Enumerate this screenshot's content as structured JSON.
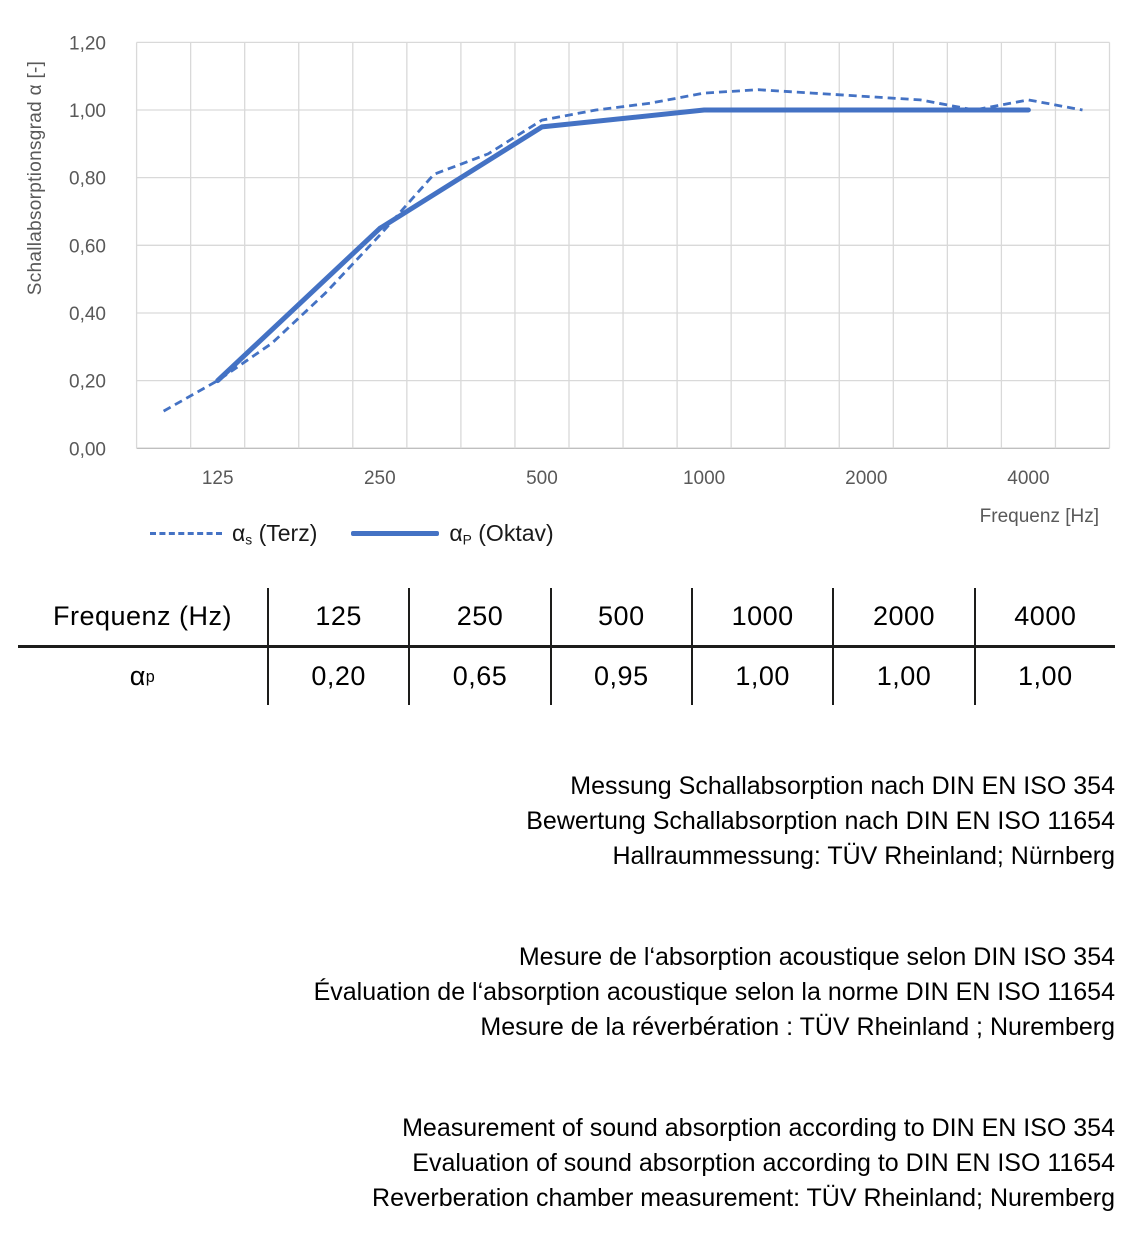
{
  "chart": {
    "y_axis_title": "Schallabsorptionsgrad α [-]",
    "x_axis_title": "Frequenz [Hz]",
    "y_ticks": [
      "0,00",
      "0,20",
      "0,40",
      "0,60",
      "0,80",
      "1,00",
      "1,20"
    ],
    "x_ticks": [
      "125",
      "250",
      "500",
      "1000",
      "2000",
      "4000"
    ],
    "legend": [
      {
        "base": "α",
        "sub": "s",
        "rest": " (Terz)",
        "style": "dashed"
      },
      {
        "base": "α",
        "sub": "P",
        "rest": " (Oktav)",
        "style": "solid"
      }
    ],
    "colors": {
      "line": "#4472C4",
      "grid": "#D9D9D9",
      "axis_line": "#BFBFBF",
      "axis_text": "#595959"
    }
  },
  "chart_data": {
    "type": "line",
    "title": "",
    "xlabel": "Frequenz [Hz]",
    "ylabel": "Schallabsorptionsgrad α [-]",
    "ylim": [
      0,
      1.2
    ],
    "y_tick_step": 0.2,
    "grid": true,
    "legend_position": "bottom-left",
    "x_scale": "third-octave categories (log spacing)",
    "categories": [
      100,
      125,
      160,
      200,
      250,
      315,
      400,
      500,
      630,
      800,
      1000,
      1250,
      1600,
      2000,
      2500,
      3150,
      4000,
      5000
    ],
    "x_axis_labeled_at": [
      125,
      250,
      500,
      1000,
      2000,
      4000
    ],
    "series": [
      {
        "name": "αs (Terz)",
        "style": "dashed",
        "x": [
          100,
          125,
          160,
          200,
          250,
          315,
          400,
          500,
          630,
          800,
          1000,
          1250,
          1600,
          2000,
          2500,
          3150,
          4000,
          5000
        ],
        "values": [
          0.11,
          0.2,
          0.31,
          0.46,
          0.63,
          0.81,
          0.87,
          0.97,
          1.0,
          1.02,
          1.05,
          1.06,
          1.05,
          1.04,
          1.03,
          1.0,
          1.03,
          1.0
        ]
      },
      {
        "name": "αp (Oktav)",
        "style": "solid",
        "x": [
          125,
          250,
          500,
          1000,
          2000,
          4000
        ],
        "values": [
          0.2,
          0.65,
          0.95,
          1.0,
          1.0,
          1.0
        ]
      }
    ]
  },
  "table": {
    "header_label": "Frequenz (Hz)",
    "header": [
      "125",
      "250",
      "500",
      "1000",
      "2000",
      "4000"
    ],
    "row_label_base": "α",
    "row_label_sub": "p",
    "values": [
      "0,20",
      "0,65",
      "0,95",
      "1,00",
      "1,00",
      "1,00"
    ]
  },
  "notes": {
    "german": {
      "line1": "Messung Schallabsorption nach DIN EN ISO 354",
      "line2": "Bewertung Schallabsorption nach DIN EN ISO 11654",
      "line3": "Hallraummessung: TÜV Rheinland; Nürnberg"
    },
    "french": {
      "line1": "Mesure de l‘absorption acoustique selon DIN ISO 354",
      "line2": "Évaluation de l‘absorption acoustique selon la norme DIN EN ISO 11654",
      "line3": "Mesure de la réverbération : TÜV Rheinland ; Nuremberg"
    },
    "english": {
      "line1": "Measurement of sound absorption according to DIN EN ISO 354",
      "line2": "Evaluation of sound absorption according to DIN EN ISO 11654",
      "line3": "Reverberation chamber measurement: TÜV Rheinland; Nuremberg"
    }
  }
}
